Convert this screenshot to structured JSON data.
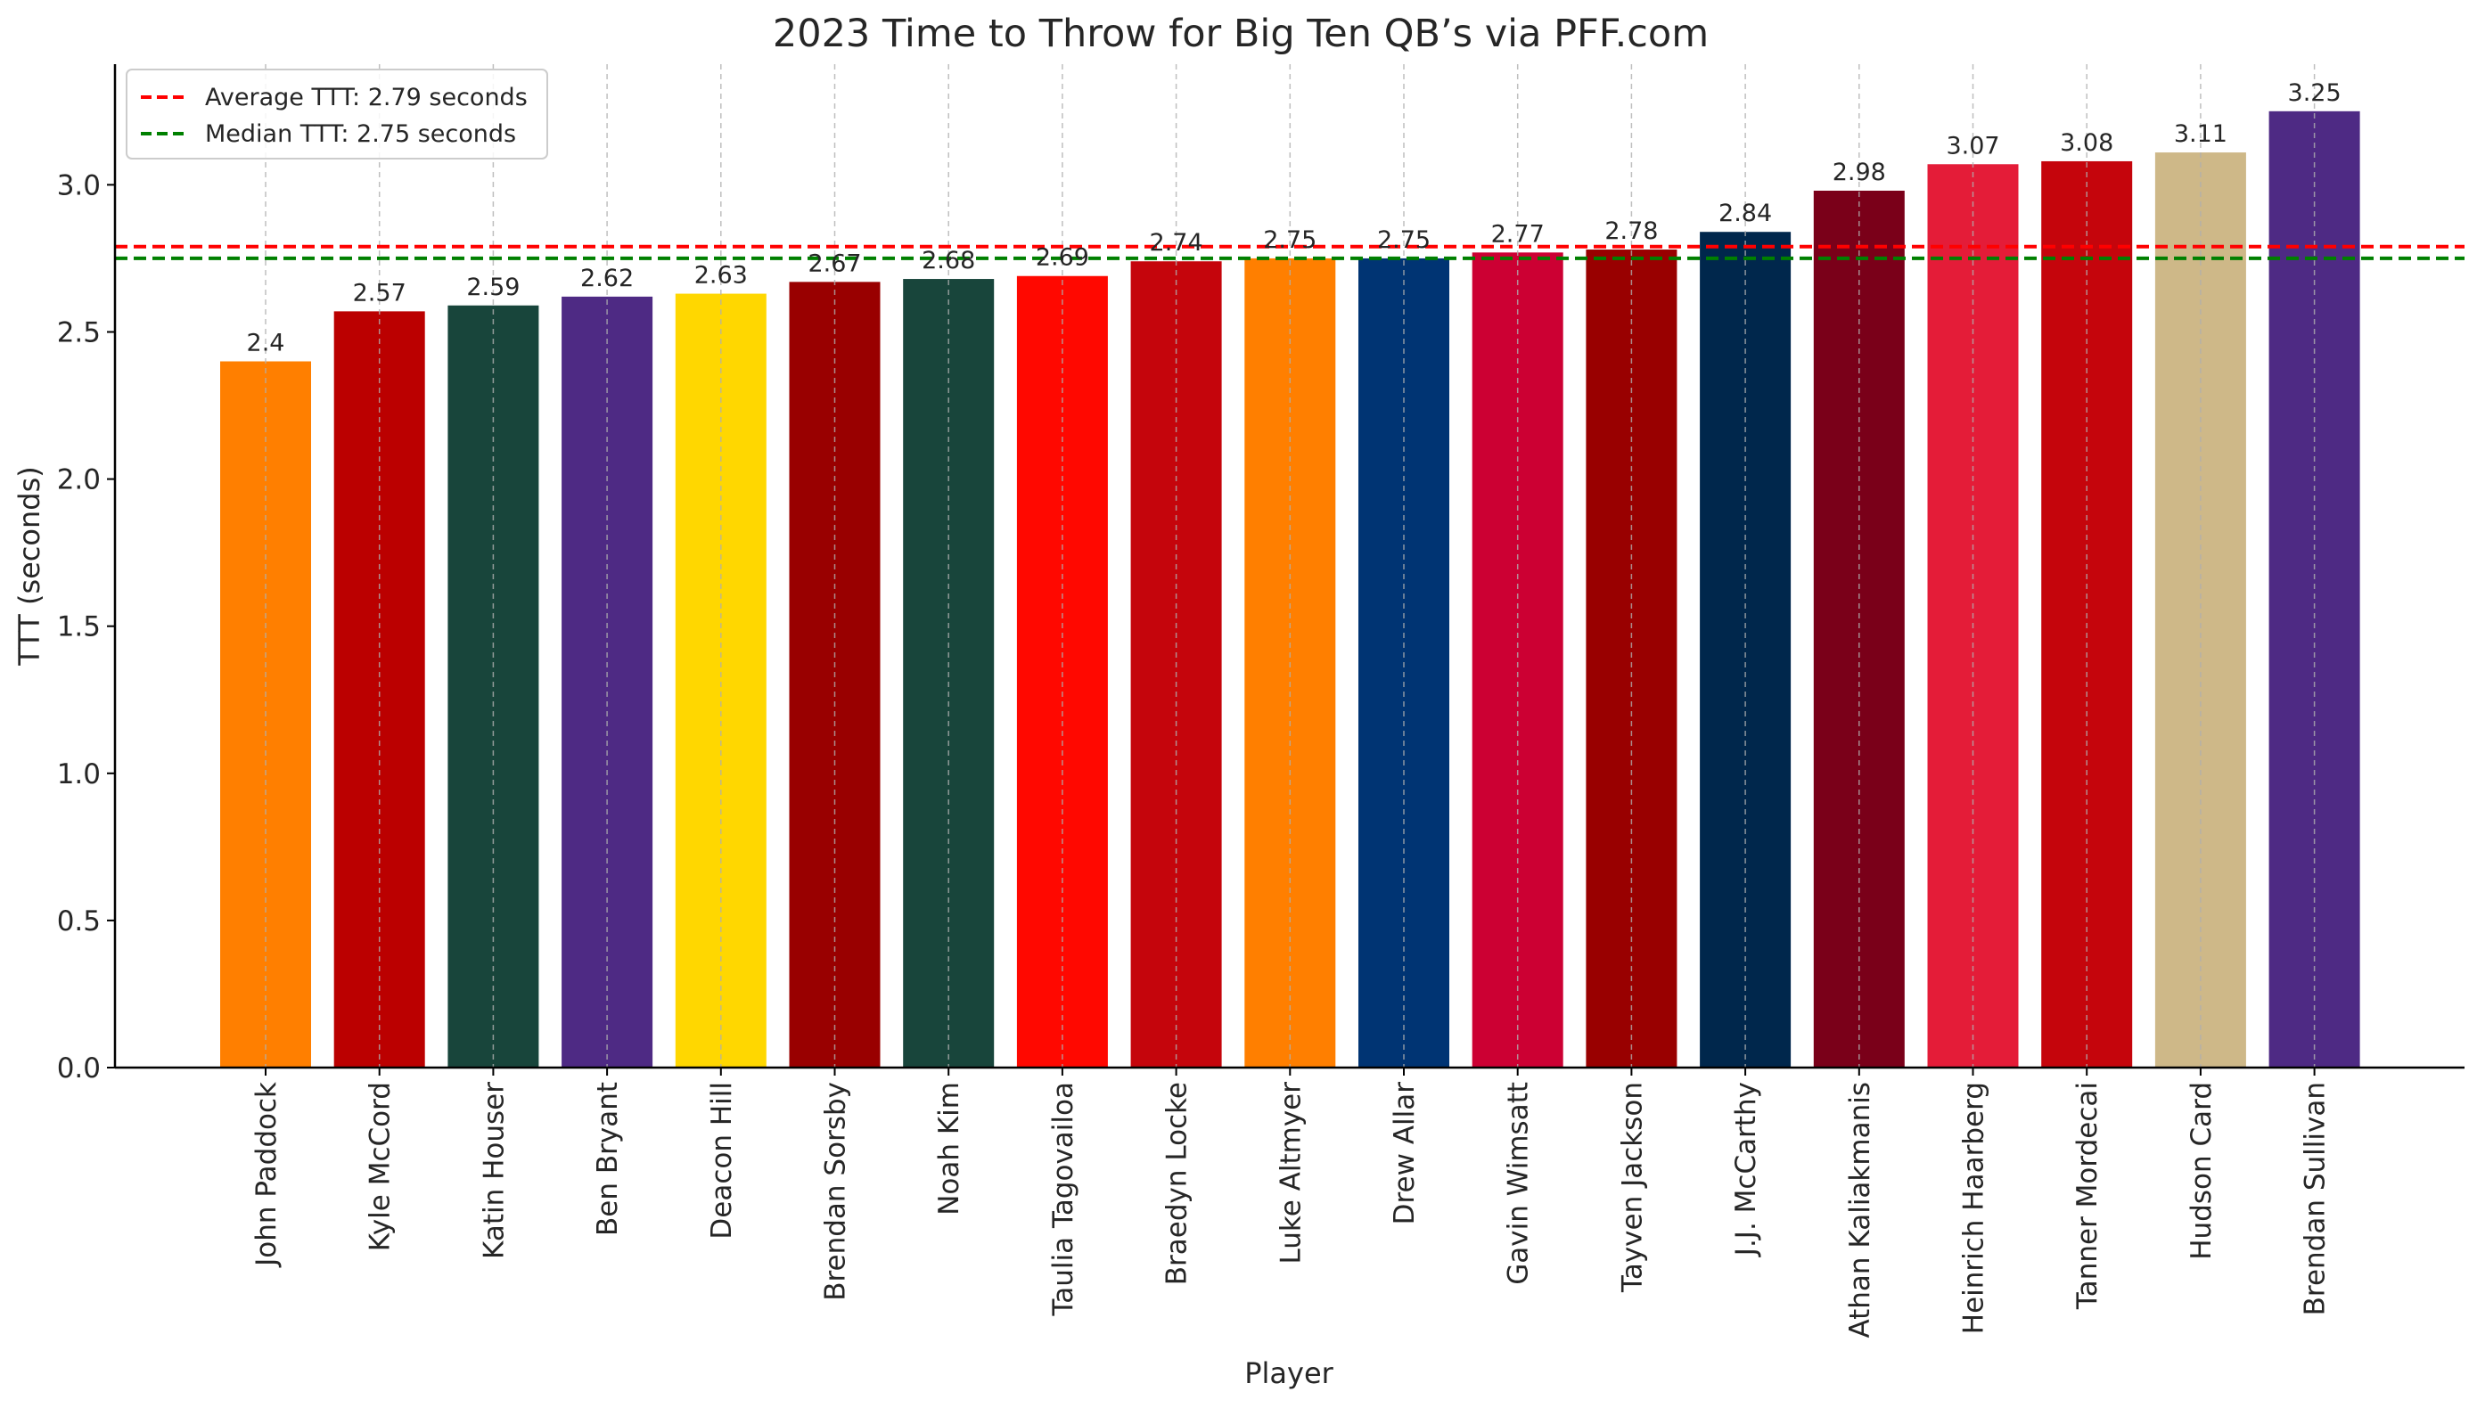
{
  "chart_data": {
    "type": "bar",
    "title": "2023 Time to Throw for Big Ten QB’s via PFF.com",
    "xlabel": "Player",
    "ylabel": "TTT (seconds)",
    "ylim": [
      0,
      3.41
    ],
    "yticks": [
      "0.0",
      "0.5",
      "1.0",
      "1.5",
      "2.0",
      "2.5",
      "3.0"
    ],
    "ytick_values": [
      0,
      0.5,
      1.0,
      1.5,
      2.0,
      2.5,
      3.0
    ],
    "grid": "vertical dashed",
    "legend_position": "top-left",
    "categories": [
      "John Paddock",
      "Kyle McCord",
      "Katin Houser",
      "Ben Bryant",
      "Deacon Hill",
      "Brendan Sorsby",
      "Noah Kim",
      "Taulia Tagovailoa",
      "Braedyn Locke",
      "Luke Altmyer",
      "Drew Allar",
      "Gavin Wimsatt",
      "Tayven Jackson",
      "J.J. McCarthy",
      "Athan Kaliakmanis",
      "Heinrich Haarberg",
      "Tanner Mordecai",
      "Hudson Card",
      "Brendan Sullivan"
    ],
    "values": [
      2.4,
      2.57,
      2.59,
      2.62,
      2.63,
      2.67,
      2.68,
      2.69,
      2.74,
      2.75,
      2.75,
      2.77,
      2.78,
      2.84,
      2.98,
      3.07,
      3.08,
      3.11,
      3.25
    ],
    "value_labels": [
      "2.4",
      "2.57",
      "2.59",
      "2.62",
      "2.63",
      "2.67",
      "2.68",
      "2.69",
      "2.74",
      "2.75",
      "2.75",
      "2.77",
      "2.78",
      "2.84",
      "2.98",
      "3.07",
      "3.08",
      "3.11",
      "3.25"
    ],
    "colors": [
      "#FF7F00",
      "#BB0000",
      "#18453B",
      "#4E2A84",
      "#FFD700",
      "#990000",
      "#18453B",
      "#FF0800",
      "#C5050C",
      "#FF7F00",
      "#003473",
      "#CC0033",
      "#990000",
      "#00274C",
      "#7A0019",
      "#E41C38",
      "#C5050C",
      "#CEB888",
      "#4E2A84"
    ],
    "reference_lines": [
      {
        "label": "Average TTT: 2.79 seconds",
        "value": 2.79,
        "color": "#FF0000"
      },
      {
        "label": "Median TTT: 2.75 seconds",
        "value": 2.75,
        "color": "#008000"
      }
    ]
  }
}
